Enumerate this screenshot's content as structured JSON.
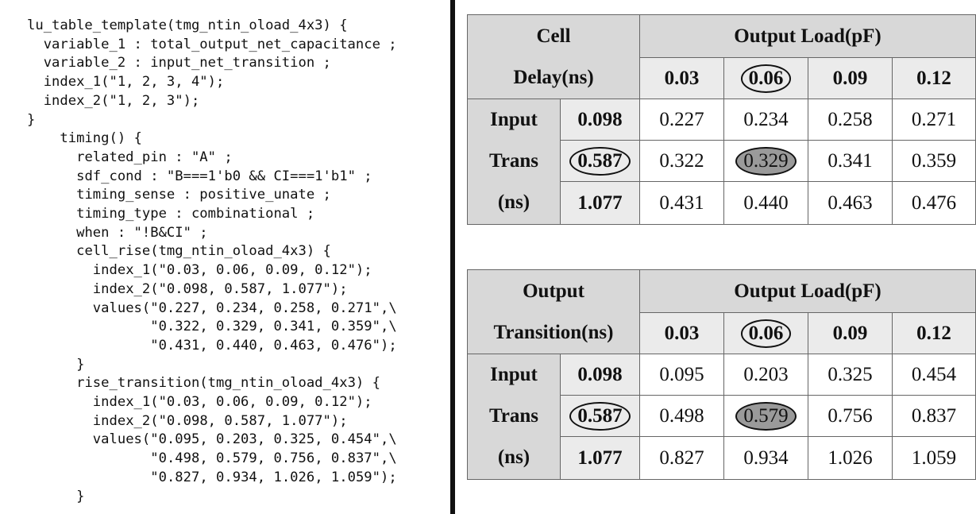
{
  "code": {
    "lines": [
      {
        "text": "lu_table_template(tmg_ntin_oload_4x3) {",
        "indent": 0
      },
      {
        "text": "variable_1 : total_output_net_capacitance ;",
        "indent": 2
      },
      {
        "text": "variable_2 : input_net_transition ;",
        "indent": 2
      },
      {
        "text": "index_1(\"1, 2, 3, 4\");",
        "indent": 2
      },
      {
        "text": "index_2(\"1, 2, 3\");",
        "indent": 2
      },
      {
        "text": "}",
        "indent": 0
      },
      {
        "text": "timing() {",
        "indent": 4
      },
      {
        "text": "related_pin : \"A\" ;",
        "indent": 6
      },
      {
        "text": "sdf_cond : \"B===1'b0 && CI===1'b1\" ;",
        "indent": 6
      },
      {
        "text": "timing_sense : positive_unate ;",
        "indent": 6
      },
      {
        "text": "timing_type : combinational ;",
        "indent": 6
      },
      {
        "text": "when : \"!B&CI\" ;",
        "indent": 6
      },
      {
        "text": "cell_rise(tmg_ntin_oload_4x3) {",
        "indent": 6
      },
      {
        "text": "index_1(\"0.03, 0.06, 0.09, 0.12\");",
        "indent": 8
      },
      {
        "text": "index_2(\"0.098, 0.587, 1.077\");",
        "indent": 8
      },
      {
        "text": "values(\"0.227, 0.234, 0.258, 0.271\",\\",
        "indent": 8
      },
      {
        "text": "\"0.322, 0.329, 0.341, 0.359\",\\",
        "indent": 15
      },
      {
        "text": "\"0.431, 0.440, 0.463, 0.476\");",
        "indent": 15
      },
      {
        "text": "}",
        "indent": 6
      },
      {
        "text": "rise_transition(tmg_ntin_oload_4x3) {",
        "indent": 6
      },
      {
        "text": "index_1(\"0.03, 0.06, 0.09, 0.12\");",
        "indent": 8
      },
      {
        "text": "index_2(\"0.098, 0.587, 1.077\");",
        "indent": 8
      },
      {
        "text": "values(\"0.095, 0.203, 0.325, 0.454\",\\",
        "indent": 8
      },
      {
        "text": "\"0.498, 0.579, 0.756, 0.837\",\\",
        "indent": 15
      },
      {
        "text": "\"0.827, 0.934, 1.026, 1.059\");",
        "indent": 15
      },
      {
        "text": "}",
        "indent": 6
      }
    ]
  },
  "delay_table": {
    "corner_line1": "Cell",
    "corner_line2": "Delay(ns)",
    "load_header": "Output Load(pF)",
    "loads": [
      "0.03",
      "0.06",
      "0.09",
      "0.12"
    ],
    "row_label_lines": [
      "Input",
      "Trans",
      "(ns)"
    ],
    "transitions": [
      "0.098",
      "0.587",
      "1.077"
    ],
    "values": [
      [
        "0.227",
        "0.234",
        "0.258",
        "0.271"
      ],
      [
        "0.322",
        "0.329",
        "0.341",
        "0.359"
      ],
      [
        "0.431",
        "0.440",
        "0.463",
        "0.476"
      ]
    ]
  },
  "transition_table": {
    "corner_line1": "Output",
    "corner_line2": "Transition(ns)",
    "load_header": "Output Load(pF)",
    "loads": [
      "0.03",
      "0.06",
      "0.09",
      "0.12"
    ],
    "row_label_lines": [
      "Input",
      "Trans",
      "(ns)"
    ],
    "transitions": [
      "0.098",
      "0.587",
      "1.077"
    ],
    "values": [
      [
        "0.095",
        "0.203",
        "0.325",
        "0.454"
      ],
      [
        "0.498",
        "0.579",
        "0.756",
        "0.837"
      ],
      [
        "0.827",
        "0.934",
        "1.026",
        "1.059"
      ]
    ]
  }
}
